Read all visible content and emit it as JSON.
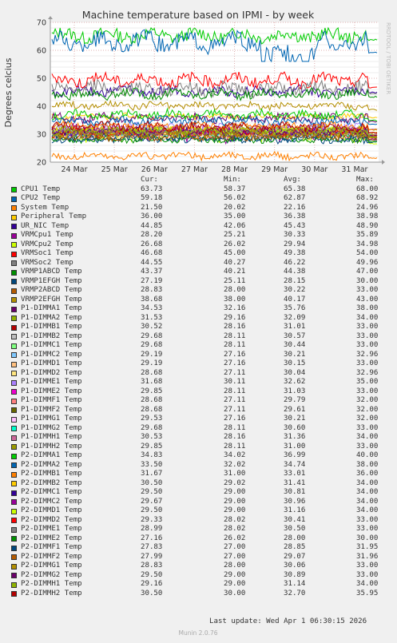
{
  "chart_data": {
    "type": "line",
    "title": "Machine temperature based on IPMI - by week",
    "ylabel": "Degrees celcius",
    "ylim": [
      20,
      70
    ],
    "yticks": [
      20,
      30,
      40,
      50,
      60,
      70
    ],
    "xtick_labels": [
      "24 Mar",
      "25 Mar",
      "26 Mar",
      "27 Mar",
      "28 Mar",
      "29 Mar",
      "30 Mar",
      "31 Mar"
    ],
    "side_label": "RRDTOOL / TOBI OETIKER",
    "columns": {
      "cur": "Cur:",
      "min": "Min:",
      "avg": "Avg:",
      "max": "Max:"
    },
    "series": [
      {
        "name": "CPU1 Temp",
        "color": "#00cc00",
        "cur": "63.73",
        "min": "58.37",
        "avg": "65.38",
        "max": "68.00"
      },
      {
        "name": "CPU2 Temp",
        "color": "#0066b3",
        "cur": "59.18",
        "min": "56.02",
        "avg": "62.87",
        "max": "68.92"
      },
      {
        "name": "System Temp",
        "color": "#ff8000",
        "cur": "21.50",
        "min": "20.02",
        "avg": "22.16",
        "max": "24.96"
      },
      {
        "name": "Peripheral Temp",
        "color": "#ffcc00",
        "cur": "36.00",
        "min": "35.00",
        "avg": "36.38",
        "max": "38.98"
      },
      {
        "name": "UR_NIC Temp",
        "color": "#330099",
        "cur": "44.85",
        "min": "42.06",
        "avg": "45.43",
        "max": "48.90"
      },
      {
        "name": "VRMCpu1 Temp",
        "color": "#990099",
        "cur": "28.20",
        "min": "25.21",
        "avg": "30.33",
        "max": "35.89"
      },
      {
        "name": "VRMCpu2 Temp",
        "color": "#ccff00",
        "cur": "26.68",
        "min": "26.02",
        "avg": "29.94",
        "max": "34.98"
      },
      {
        "name": "VRMSoc1 Temp",
        "color": "#ff0000",
        "cur": "46.68",
        "min": "45.00",
        "avg": "49.38",
        "max": "54.00"
      },
      {
        "name": "VRMSoc2 Temp",
        "color": "#808080",
        "cur": "44.55",
        "min": "40.27",
        "avg": "46.22",
        "max": "49.96"
      },
      {
        "name": "VRMP1ABCD Temp",
        "color": "#008f00",
        "cur": "43.37",
        "min": "40.21",
        "avg": "44.38",
        "max": "47.00"
      },
      {
        "name": "VRMP1EFGH Temp",
        "color": "#00487d",
        "cur": "27.19",
        "min": "25.11",
        "avg": "28.15",
        "max": "30.00"
      },
      {
        "name": "VRMP2ABCD Temp",
        "color": "#b35a00",
        "cur": "28.83",
        "min": "28.00",
        "avg": "30.22",
        "max": "33.00"
      },
      {
        "name": "VRMP2EFGH Temp",
        "color": "#b38f00",
        "cur": "38.68",
        "min": "38.00",
        "avg": "40.17",
        "max": "43.00"
      },
      {
        "name": "P1-DIMMA1 Temp",
        "color": "#6b006b",
        "cur": "34.53",
        "min": "32.16",
        "avg": "35.76",
        "max": "38.00"
      },
      {
        "name": "P1-DIMMA2 Temp",
        "color": "#8fb300",
        "cur": "31.53",
        "min": "29.16",
        "avg": "32.09",
        "max": "34.00"
      },
      {
        "name": "P1-DIMMB1 Temp",
        "color": "#b30000",
        "cur": "30.52",
        "min": "28.16",
        "avg": "31.01",
        "max": "33.00"
      },
      {
        "name": "P1-DIMMB2 Temp",
        "color": "#bebebe",
        "cur": "29.68",
        "min": "28.11",
        "avg": "30.57",
        "max": "33.00"
      },
      {
        "name": "P1-DIMMC1 Temp",
        "color": "#80ff80",
        "cur": "29.68",
        "min": "28.11",
        "avg": "30.44",
        "max": "33.00"
      },
      {
        "name": "P1-DIMMC2 Temp",
        "color": "#80c9ff",
        "cur": "29.19",
        "min": "27.16",
        "avg": "30.21",
        "max": "32.96"
      },
      {
        "name": "P1-DIMMD1 Temp",
        "color": "#ffc080",
        "cur": "29.19",
        "min": "27.16",
        "avg": "30.15",
        "max": "33.00"
      },
      {
        "name": "P1-DIMMD2 Temp",
        "color": "#ffe680",
        "cur": "28.68",
        "min": "27.11",
        "avg": "30.04",
        "max": "32.96"
      },
      {
        "name": "P1-DIMME1 Temp",
        "color": "#aa80ff",
        "cur": "31.68",
        "min": "30.11",
        "avg": "32.62",
        "max": "35.00"
      },
      {
        "name": "P1-DIMME2 Temp",
        "color": "#ee00cc",
        "cur": "29.85",
        "min": "28.11",
        "avg": "31.03",
        "max": "33.00"
      },
      {
        "name": "P1-DIMMF1 Temp",
        "color": "#ff8080",
        "cur": "28.68",
        "min": "27.11",
        "avg": "29.79",
        "max": "32.00"
      },
      {
        "name": "P1-DIMMF2 Temp",
        "color": "#666600",
        "cur": "28.68",
        "min": "27.11",
        "avg": "29.61",
        "max": "32.00"
      },
      {
        "name": "P1-DIMMG1 Temp",
        "color": "#ffbfff",
        "cur": "29.53",
        "min": "27.16",
        "avg": "30.21",
        "max": "32.00"
      },
      {
        "name": "P1-DIMMG2 Temp",
        "color": "#00ffcc",
        "cur": "29.68",
        "min": "28.11",
        "avg": "30.60",
        "max": "33.00"
      },
      {
        "name": "P1-DIMMH1 Temp",
        "color": "#cc6699",
        "cur": "30.53",
        "min": "28.16",
        "avg": "31.36",
        "max": "34.00"
      },
      {
        "name": "P1-DIMMH2 Temp",
        "color": "#999900",
        "cur": "29.85",
        "min": "28.11",
        "avg": "31.00",
        "max": "33.00"
      },
      {
        "name": "P2-DIMMA1 Temp",
        "color": "#00cc00",
        "cur": "34.83",
        "min": "34.02",
        "avg": "36.99",
        "max": "40.00"
      },
      {
        "name": "P2-DIMMA2 Temp",
        "color": "#0066b3",
        "cur": "33.50",
        "min": "32.02",
        "avg": "34.74",
        "max": "38.00"
      },
      {
        "name": "P2-DIMMB1 Temp",
        "color": "#ff8000",
        "cur": "31.67",
        "min": "31.00",
        "avg": "33.01",
        "max": "36.00"
      },
      {
        "name": "P2-DIMMB2 Temp",
        "color": "#ffcc00",
        "cur": "30.50",
        "min": "29.02",
        "avg": "31.41",
        "max": "34.00"
      },
      {
        "name": "P2-DIMMC1 Temp",
        "color": "#330099",
        "cur": "29.50",
        "min": "29.00",
        "avg": "30.81",
        "max": "34.00"
      },
      {
        "name": "P2-DIMMC2 Temp",
        "color": "#990099",
        "cur": "29.67",
        "min": "29.00",
        "avg": "30.96",
        "max": "34.00"
      },
      {
        "name": "P2-DIMMD1 Temp",
        "color": "#ccff00",
        "cur": "29.50",
        "min": "29.00",
        "avg": "31.16",
        "max": "34.00"
      },
      {
        "name": "P2-DIMMD2 Temp",
        "color": "#ff0000",
        "cur": "29.33",
        "min": "28.02",
        "avg": "30.41",
        "max": "33.00"
      },
      {
        "name": "P2-DIMME1 Temp",
        "color": "#808080",
        "cur": "28.99",
        "min": "28.02",
        "avg": "30.50",
        "max": "33.00"
      },
      {
        "name": "P2-DIMME2 Temp",
        "color": "#008f00",
        "cur": "27.16",
        "min": "26.02",
        "avg": "28.00",
        "max": "30.00"
      },
      {
        "name": "P2-DIMMF1 Temp",
        "color": "#00487d",
        "cur": "27.83",
        "min": "27.00",
        "avg": "28.85",
        "max": "31.95"
      },
      {
        "name": "P2-DIMMF2 Temp",
        "color": "#b35a00",
        "cur": "27.99",
        "min": "27.00",
        "avg": "29.07",
        "max": "31.96"
      },
      {
        "name": "P2-DIMMG1 Temp",
        "color": "#b38f00",
        "cur": "28.83",
        "min": "28.00",
        "avg": "30.06",
        "max": "33.00"
      },
      {
        "name": "P2-DIMMG2 Temp",
        "color": "#6b006b",
        "cur": "29.50",
        "min": "29.00",
        "avg": "30.89",
        "max": "33.00"
      },
      {
        "name": "P2-DIMMH1 Temp",
        "color": "#8fb300",
        "cur": "29.16",
        "min": "29.00",
        "avg": "31.14",
        "max": "34.00"
      },
      {
        "name": "P2-DIMMH2 Temp",
        "color": "#b30000",
        "cur": "30.50",
        "min": "30.00",
        "avg": "32.70",
        "max": "35.95"
      }
    ]
  },
  "last_update": "Last update: Wed Apr  1 06:30:15 2026",
  "footer": "Munin 2.0.76"
}
